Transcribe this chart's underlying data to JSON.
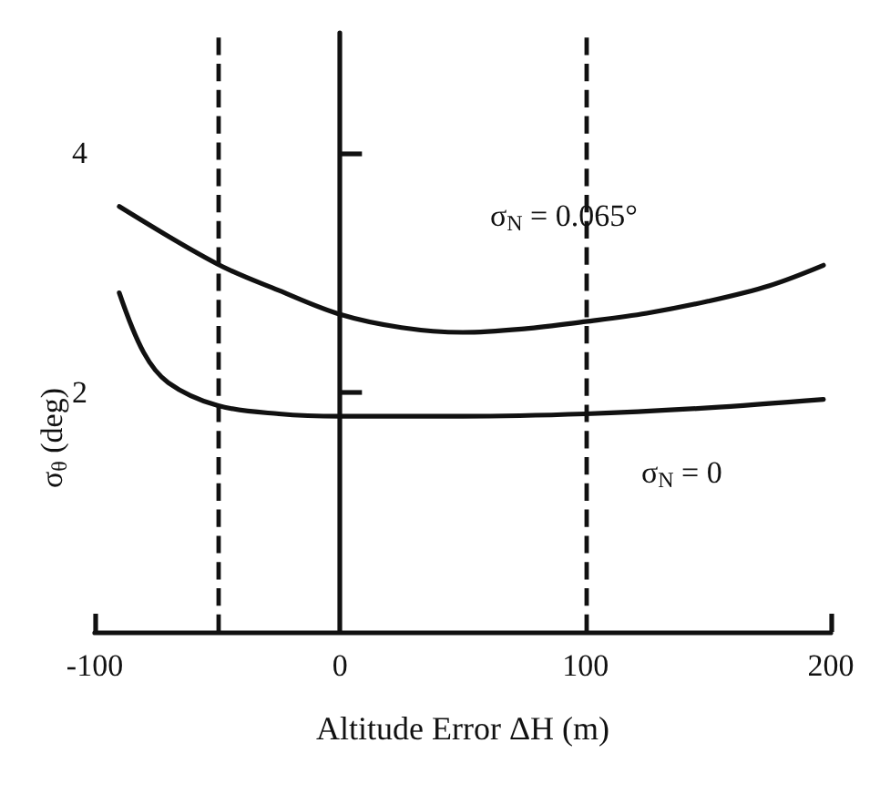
{
  "chart_data": {
    "type": "line",
    "xlabel": "Altitude Error ΔH (m)",
    "xlim": [
      -100,
      200
    ],
    "xticks": [
      -100,
      0,
      100,
      200
    ],
    "ylim": [
      0,
      5
    ],
    "yticks": [
      2,
      4
    ],
    "marker": "none",
    "line_style": "solid",
    "series": [
      {
        "name": "σ$_{N}$ = 0.065°",
        "color": "#111111",
        "x": [
          -90,
          -50,
          -25,
          0,
          25,
          50,
          75,
          100,
          125,
          150,
          175,
          197
        ],
        "values": [
          3.55,
          3.07,
          2.85,
          2.65,
          2.54,
          2.5,
          2.53,
          2.59,
          2.66,
          2.76,
          2.89,
          3.06
        ]
      },
      {
        "name": "σ$_{N}$ = 0",
        "color": "#111111",
        "x": [
          -90,
          -80,
          -70,
          -50,
          -25,
          0,
          50,
          100,
          150,
          197
        ],
        "values": [
          2.83,
          2.33,
          2.08,
          1.89,
          1.82,
          1.8,
          1.8,
          1.82,
          1.87,
          1.94
        ]
      }
    ],
    "ref_lines": [
      {
        "axis": "x",
        "value": -50,
        "color": "#111111",
        "line_style": "dashed"
      },
      {
        "axis": "x",
        "value": 100,
        "color": "#111111",
        "line_style": "dashed"
      }
    ],
    "annotations": [
      "σ$_{θ}$ (deg)"
    ]
  }
}
